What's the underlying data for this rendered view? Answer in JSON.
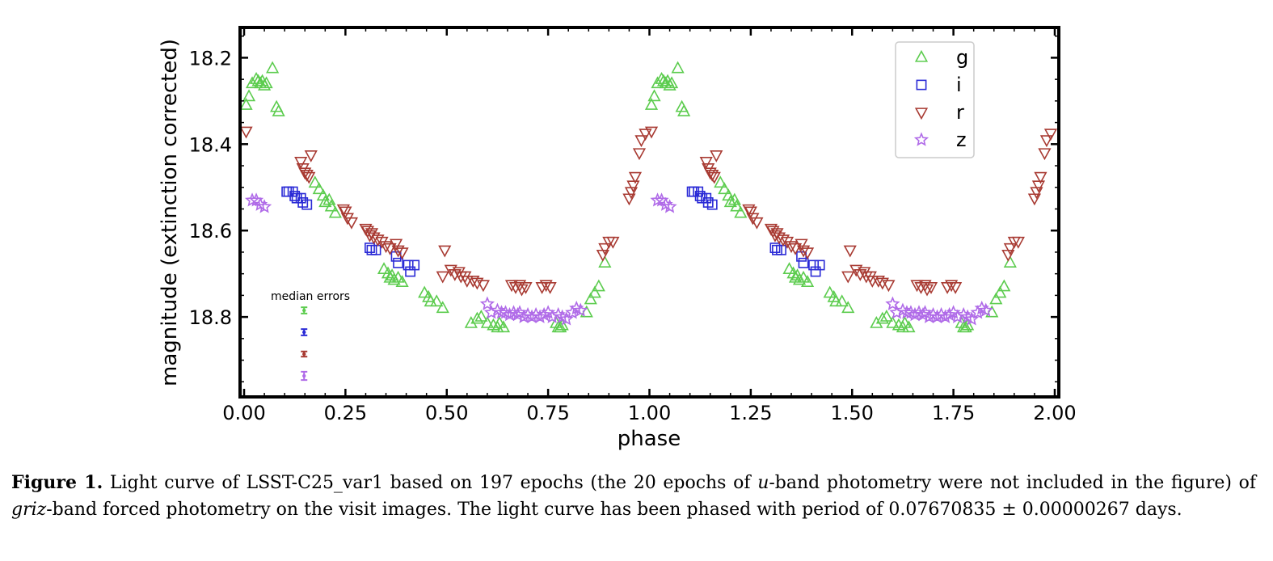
{
  "chart_data": {
    "type": "scatter",
    "title": "",
    "xlabel": "phase",
    "ylabel": "magnitude (extinction corrected)",
    "xlim": [
      -0.01,
      2.01
    ],
    "ylim": [
      18.985,
      18.13
    ],
    "y_inverted": true,
    "x_ticks": [
      "0.00",
      "0.25",
      "0.50",
      "0.75",
      "1.00",
      "1.25",
      "1.50",
      "1.75",
      "2.00"
    ],
    "x_tick_values": [
      0,
      0.25,
      0.5,
      0.75,
      1.0,
      1.25,
      1.5,
      1.75,
      2.0
    ],
    "y_ticks": [
      "18.2",
      "18.4",
      "18.6",
      "18.8"
    ],
    "y_tick_values": [
      18.2,
      18.4,
      18.6,
      18.8
    ],
    "legend_position": "top-right",
    "series": [
      {
        "name": "g",
        "marker": "triangle-up",
        "color": "#5ccc4e",
        "points": [
          [
            0.005,
            18.31
          ],
          [
            0.012,
            18.29
          ],
          [
            0.02,
            18.26
          ],
          [
            0.03,
            18.25
          ],
          [
            0.035,
            18.255
          ],
          [
            0.04,
            18.26
          ],
          [
            0.045,
            18.255
          ],
          [
            0.05,
            18.265
          ],
          [
            0.055,
            18.26
          ],
          [
            0.07,
            18.225
          ],
          [
            0.08,
            18.315
          ],
          [
            0.085,
            18.325
          ],
          [
            0.175,
            18.49
          ],
          [
            0.185,
            18.505
          ],
          [
            0.195,
            18.52
          ],
          [
            0.2,
            18.535
          ],
          [
            0.21,
            18.53
          ],
          [
            0.215,
            18.545
          ],
          [
            0.225,
            18.56
          ],
          [
            0.345,
            18.69
          ],
          [
            0.355,
            18.7
          ],
          [
            0.36,
            18.71
          ],
          [
            0.365,
            18.705
          ],
          [
            0.37,
            18.715
          ],
          [
            0.38,
            18.71
          ],
          [
            0.39,
            18.72
          ],
          [
            0.445,
            18.745
          ],
          [
            0.455,
            18.755
          ],
          [
            0.46,
            18.765
          ],
          [
            0.475,
            18.765
          ],
          [
            0.49,
            18.78
          ],
          [
            0.56,
            18.815
          ],
          [
            0.575,
            18.805
          ],
          [
            0.585,
            18.8
          ],
          [
            0.6,
            18.815
          ],
          [
            0.615,
            18.82
          ],
          [
            0.625,
            18.825
          ],
          [
            0.63,
            18.815
          ],
          [
            0.64,
            18.825
          ],
          [
            0.77,
            18.815
          ],
          [
            0.775,
            18.825
          ],
          [
            0.78,
            18.825
          ],
          [
            0.785,
            18.82
          ],
          [
            0.845,
            18.79
          ],
          [
            0.855,
            18.76
          ],
          [
            0.865,
            18.745
          ],
          [
            0.875,
            18.73
          ],
          [
            0.89,
            18.675
          ]
        ]
      },
      {
        "name": "i",
        "marker": "square",
        "color": "#2a2ad6",
        "points": [
          [
            0.105,
            18.51
          ],
          [
            0.11,
            18.51
          ],
          [
            0.12,
            18.51
          ],
          [
            0.125,
            18.52
          ],
          [
            0.13,
            18.525
          ],
          [
            0.14,
            18.525
          ],
          [
            0.145,
            18.535
          ],
          [
            0.155,
            18.54
          ],
          [
            0.31,
            18.64
          ],
          [
            0.315,
            18.645
          ],
          [
            0.325,
            18.645
          ],
          [
            0.375,
            18.66
          ],
          [
            0.38,
            18.675
          ],
          [
            0.405,
            18.68
          ],
          [
            0.41,
            18.695
          ],
          [
            0.42,
            18.68
          ]
        ]
      },
      {
        "name": "r",
        "marker": "triangle-down",
        "color": "#a83a32",
        "points": [
          [
            0.005,
            18.37
          ],
          [
            0.14,
            18.44
          ],
          [
            0.145,
            18.455
          ],
          [
            0.15,
            18.465
          ],
          [
            0.155,
            18.47
          ],
          [
            0.16,
            18.475
          ],
          [
            0.165,
            18.425
          ],
          [
            0.245,
            18.55
          ],
          [
            0.25,
            18.555
          ],
          [
            0.255,
            18.57
          ],
          [
            0.265,
            18.58
          ],
          [
            0.3,
            18.595
          ],
          [
            0.305,
            18.6
          ],
          [
            0.31,
            18.61
          ],
          [
            0.315,
            18.605
          ],
          [
            0.32,
            18.615
          ],
          [
            0.33,
            18.62
          ],
          [
            0.34,
            18.625
          ],
          [
            0.35,
            18.635
          ],
          [
            0.36,
            18.64
          ],
          [
            0.375,
            18.63
          ],
          [
            0.38,
            18.645
          ],
          [
            0.39,
            18.65
          ],
          [
            0.49,
            18.705
          ],
          [
            0.495,
            18.645
          ],
          [
            0.51,
            18.69
          ],
          [
            0.52,
            18.7
          ],
          [
            0.53,
            18.695
          ],
          [
            0.535,
            18.705
          ],
          [
            0.545,
            18.705
          ],
          [
            0.55,
            18.715
          ],
          [
            0.565,
            18.715
          ],
          [
            0.575,
            18.72
          ],
          [
            0.59,
            18.725
          ],
          [
            0.66,
            18.725
          ],
          [
            0.67,
            18.73
          ],
          [
            0.68,
            18.725
          ],
          [
            0.685,
            18.735
          ],
          [
            0.695,
            18.73
          ],
          [
            0.735,
            18.73
          ],
          [
            0.745,
            18.725
          ],
          [
            0.755,
            18.73
          ],
          [
            0.885,
            18.655
          ],
          [
            0.89,
            18.64
          ],
          [
            0.9,
            18.625
          ],
          [
            0.91,
            18.625
          ],
          [
            0.95,
            18.525
          ],
          [
            0.955,
            18.51
          ],
          [
            0.96,
            18.495
          ],
          [
            0.965,
            18.475
          ],
          [
            0.975,
            18.42
          ],
          [
            0.98,
            18.39
          ],
          [
            0.99,
            18.375
          ]
        ]
      },
      {
        "name": "z",
        "marker": "star",
        "color": "#b06be8",
        "points": [
          [
            0.02,
            18.53
          ],
          [
            0.03,
            18.53
          ],
          [
            0.04,
            18.54
          ],
          [
            0.05,
            18.545
          ],
          [
            0.6,
            18.77
          ],
          [
            0.61,
            18.79
          ],
          [
            0.625,
            18.785
          ],
          [
            0.635,
            18.79
          ],
          [
            0.645,
            18.79
          ],
          [
            0.655,
            18.795
          ],
          [
            0.665,
            18.79
          ],
          [
            0.675,
            18.795
          ],
          [
            0.68,
            18.79
          ],
          [
            0.69,
            18.8
          ],
          [
            0.7,
            18.795
          ],
          [
            0.71,
            18.8
          ],
          [
            0.72,
            18.795
          ],
          [
            0.73,
            18.8
          ],
          [
            0.74,
            18.795
          ],
          [
            0.75,
            18.79
          ],
          [
            0.76,
            18.8
          ],
          [
            0.775,
            18.795
          ],
          [
            0.785,
            18.8
          ],
          [
            0.795,
            18.805
          ],
          [
            0.81,
            18.79
          ],
          [
            0.82,
            18.78
          ],
          [
            0.83,
            18.785
          ]
        ]
      }
    ],
    "annotation": "median errors",
    "median_errors": [
      {
        "band": "g",
        "color": "#5ccc4e",
        "mag_err": 0.006
      },
      {
        "band": "i",
        "color": "#2a2ad6",
        "mag_err": 0.006
      },
      {
        "band": "r",
        "color": "#a83a32",
        "mag_err": 0.005
      },
      {
        "band": "z",
        "color": "#b06be8",
        "mag_err": 0.008
      }
    ]
  },
  "caption": {
    "label": "Figure 1.",
    "text_1": " Light curve of LSST-C25_var1 based on 197 epochs (the 20 epochs of ",
    "italic_u": "u",
    "text_2": "-band photometry were not included in the figure) of ",
    "italic_griz": "griz",
    "text_3": "-band forced photometry on the visit images. The light curve has been phased with period of 0.07670835 ± 0.00000267 days."
  }
}
